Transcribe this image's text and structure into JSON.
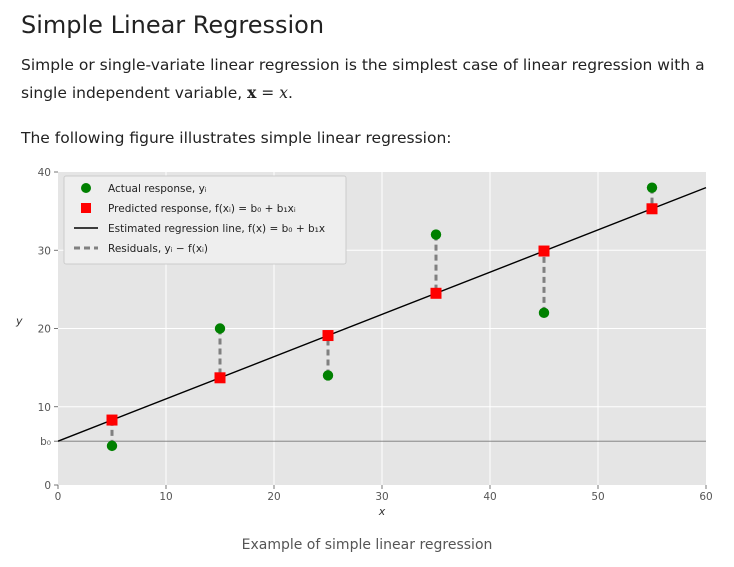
{
  "header": {
    "title": "Simple Linear Regression"
  },
  "intro": {
    "text": "Simple or single-variate linear regression is the simplest case of linear regression with a single independent variable,",
    "math_bold": "x",
    "math_eq": " = ",
    "math_var": "x",
    "suffix": "."
  },
  "figure_intro": "The following figure illustrates simple linear regression:",
  "caption": "Example of simple linear regression",
  "colors": {
    "plot_bg": "#e5e5e5",
    "grid": "#ffffff",
    "actual": "#008000",
    "predicted": "#ff0000",
    "line": "#000000",
    "residual": "#808080"
  },
  "chart_data": {
    "type": "scatter",
    "xlabel": "x",
    "ylabel": "y",
    "xlim": [
      0,
      60
    ],
    "ylim": [
      0,
      40
    ],
    "xticks": [
      "0",
      "10",
      "20",
      "30",
      "40",
      "50",
      "60"
    ],
    "yticks": [
      "0",
      "10",
      "b₀",
      "20",
      "30",
      "40"
    ],
    "ytick_values": [
      0,
      10,
      5.6,
      20,
      30,
      40
    ],
    "grid": true,
    "legend_position": "top-left",
    "intercept_label": "b₀",
    "intercept": 5.6,
    "slope": 0.54,
    "x": [
      5,
      15,
      25,
      35,
      45,
      55
    ],
    "actual": [
      5,
      20,
      14,
      32,
      22,
      38
    ],
    "predicted": [
      8.3,
      13.7,
      19.1,
      24.5,
      29.9,
      35.3
    ],
    "legend": [
      {
        "label": "Actual response, yᵢ",
        "marker": "green-circle"
      },
      {
        "label": "Predicted response, f(xᵢ) = b₀ + b₁xᵢ",
        "marker": "red-square"
      },
      {
        "label": "Estimated regression line, f(x) = b₀ + b₁x",
        "marker": "solid-line"
      },
      {
        "label": "Residuals, yᵢ − f(xᵢ)",
        "marker": "dashed-line"
      }
    ]
  }
}
